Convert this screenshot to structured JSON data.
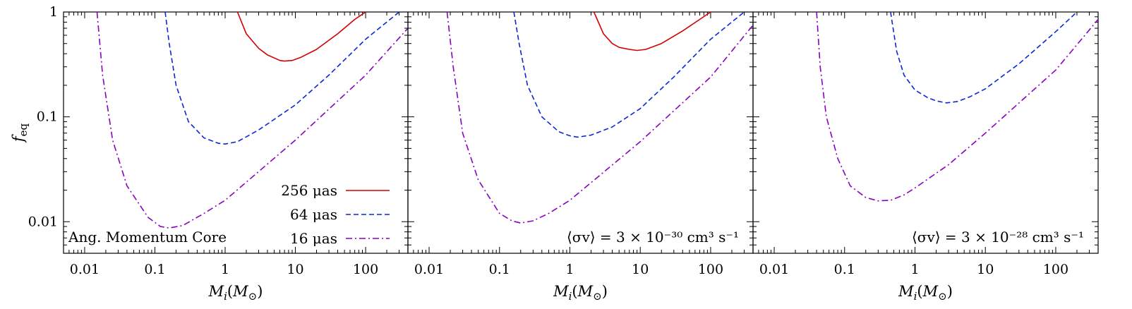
{
  "chart_data": [
    {
      "type": "line",
      "xscale": "log",
      "yscale": "log",
      "xlim": [
        0.005,
        400
      ],
      "ylim": [
        0.005,
        1
      ],
      "xticks": [
        0.01,
        0.1,
        1,
        10,
        100
      ],
      "xtick_labels": [
        "0.01",
        "0.1",
        "1",
        "10",
        "100"
      ],
      "yticks": [
        0.01,
        0.1,
        1
      ],
      "ytick_labels": [
        "0.01",
        "0.1",
        "1"
      ],
      "xlabel": "M_i(M_⊙)",
      "ylabel": "f_eq",
      "annotation": "Ang. Momentum Core",
      "legend": {
        "placement": "bottom-right"
      },
      "series": [
        {
          "name": "256 μas",
          "style": "solid",
          "color": "#d40000",
          "x": [
            1.5,
            2,
            3,
            4,
            6,
            7,
            9,
            12,
            20,
            40,
            70,
            100
          ],
          "y": [
            1.0,
            0.62,
            0.45,
            0.39,
            0.345,
            0.34,
            0.345,
            0.37,
            0.44,
            0.62,
            0.85,
            1.0
          ]
        },
        {
          "name": "64 μas",
          "style": "dashed",
          "color": "#0a28d4",
          "x": [
            0.14,
            0.16,
            0.2,
            0.3,
            0.5,
            0.8,
            1.0,
            1.5,
            3,
            10,
            30,
            100,
            300
          ],
          "y": [
            1.0,
            0.5,
            0.2,
            0.09,
            0.063,
            0.056,
            0.055,
            0.058,
            0.075,
            0.13,
            0.25,
            0.55,
            1.0
          ]
        },
        {
          "name": "16 μas",
          "style": "dashdot",
          "color": "#8a00c0",
          "x": [
            0.015,
            0.018,
            0.025,
            0.04,
            0.08,
            0.12,
            0.16,
            0.25,
            0.5,
            1,
            10,
            100,
            400
          ],
          "y": [
            1.0,
            0.25,
            0.06,
            0.022,
            0.011,
            0.009,
            0.0087,
            0.0092,
            0.012,
            0.016,
            0.06,
            0.25,
            0.7
          ]
        }
      ]
    },
    {
      "type": "line",
      "xscale": "log",
      "yscale": "log",
      "xlim": [
        0.005,
        400
      ],
      "ylim": [
        0.005,
        1
      ],
      "xticks": [
        0.01,
        0.1,
        1,
        10,
        100
      ],
      "xtick_labels": [
        "0.01",
        "0.1",
        "1",
        "10",
        "100"
      ],
      "xlabel": "M_i(M_⊙)",
      "annotation": "⟨σv⟩ = 3 × 10⁻³⁰ cm³ s⁻¹",
      "series": [
        {
          "style": "solid",
          "color": "#d40000",
          "x": [
            2.2,
            3,
            4,
            5,
            7,
            9,
            12,
            20,
            40,
            70,
            100
          ],
          "y": [
            1.0,
            0.62,
            0.5,
            0.46,
            0.44,
            0.43,
            0.44,
            0.5,
            0.66,
            0.85,
            1.0
          ]
        },
        {
          "style": "dashed",
          "color": "#0a28d4",
          "x": [
            0.16,
            0.19,
            0.25,
            0.4,
            0.7,
            1.0,
            1.3,
            2,
            4,
            10,
            30,
            100,
            300
          ],
          "y": [
            1.0,
            0.5,
            0.2,
            0.1,
            0.072,
            0.066,
            0.064,
            0.067,
            0.08,
            0.12,
            0.24,
            0.55,
            1.0
          ]
        },
        {
          "style": "dashdot",
          "color": "#8a00c0",
          "x": [
            0.018,
            0.022,
            0.03,
            0.05,
            0.1,
            0.15,
            0.2,
            0.3,
            0.5,
            1,
            10,
            100,
            400
          ],
          "y": [
            1.0,
            0.3,
            0.07,
            0.025,
            0.012,
            0.0102,
            0.0097,
            0.0102,
            0.012,
            0.016,
            0.058,
            0.24,
            0.75
          ]
        }
      ]
    },
    {
      "type": "line",
      "xscale": "log",
      "yscale": "log",
      "xlim": [
        0.005,
        400
      ],
      "ylim": [
        0.005,
        1
      ],
      "xticks": [
        0.01,
        0.1,
        1,
        10,
        100
      ],
      "xtick_labels": [
        "0.01",
        "0.1",
        "1",
        "10",
        "100"
      ],
      "xlabel": "M_i(M_⊙)",
      "annotation": "⟨σv⟩ = 3 × 10⁻²⁸ cm³ s⁻¹",
      "series": [
        {
          "style": "dashed",
          "color": "#0a28d4",
          "x": [
            0.45,
            0.55,
            0.7,
            1,
            1.5,
            2,
            2.8,
            4,
            6,
            10,
            30,
            100,
            200
          ],
          "y": [
            1.0,
            0.42,
            0.25,
            0.18,
            0.153,
            0.142,
            0.136,
            0.14,
            0.155,
            0.185,
            0.32,
            0.65,
            1.0
          ]
        },
        {
          "style": "dashdot",
          "color": "#8a00c0",
          "x": [
            0.04,
            0.045,
            0.055,
            0.08,
            0.12,
            0.2,
            0.3,
            0.45,
            0.7,
            1,
            3,
            10,
            100,
            400
          ],
          "y": [
            1.0,
            0.3,
            0.1,
            0.04,
            0.022,
            0.017,
            0.0158,
            0.016,
            0.018,
            0.021,
            0.035,
            0.07,
            0.28,
            0.85
          ]
        }
      ]
    }
  ]
}
